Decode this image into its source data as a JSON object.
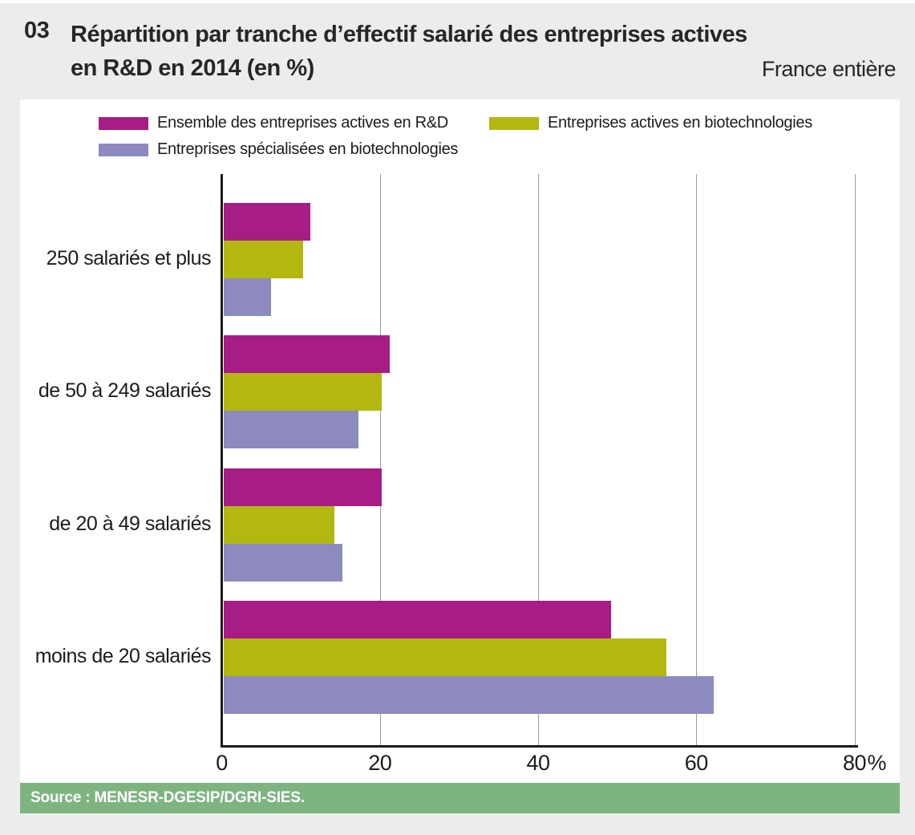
{
  "header": {
    "number": "03",
    "title_line1": "Répartition par tranche d’effectif salarié des entreprises actives",
    "title_line2": "en R&D en 2014 (en %)",
    "region": "France entière"
  },
  "source": "Source : MENESR-DGESIP/DGRI-SIES.",
  "colors": {
    "page_bg": "#ececec",
    "panel_bg": "#ffffff",
    "source_bar_bg": "#7db480",
    "text": "#262626",
    "gridline": "#9a9a9a",
    "axis": "#1a1a1a",
    "series_magenta": "#a81c85",
    "series_olive": "#b2b80f",
    "series_purple": "#8c8abf"
  },
  "chart_data": {
    "type": "bar",
    "orientation": "horizontal",
    "title": "Répartition par tranche d’effectif salarié des entreprises actives en R&D en 2014 (en %)",
    "region_note": "France entière",
    "unit": "%",
    "categories": [
      "250 salariés et plus",
      "de 50 à 249 salariés",
      "de 20 à 49 salariés",
      "moins de 20 salariés"
    ],
    "series": [
      {
        "name": "Ensemble des entreprises actives en R&D",
        "color": "#a81c85",
        "values": [
          11,
          21,
          20,
          49
        ]
      },
      {
        "name": "Entreprises actives en biotechnologies",
        "color": "#b2b80f",
        "values": [
          10,
          20,
          14,
          56
        ]
      },
      {
        "name": "Entreprises spécialisées en biotechnologies",
        "color": "#8c8abf",
        "values": [
          6,
          17,
          15,
          62
        ]
      }
    ],
    "xlim": [
      0,
      80
    ],
    "xticks": [
      0,
      20,
      40,
      60,
      80
    ],
    "grid": true,
    "legend_position": "top"
  }
}
